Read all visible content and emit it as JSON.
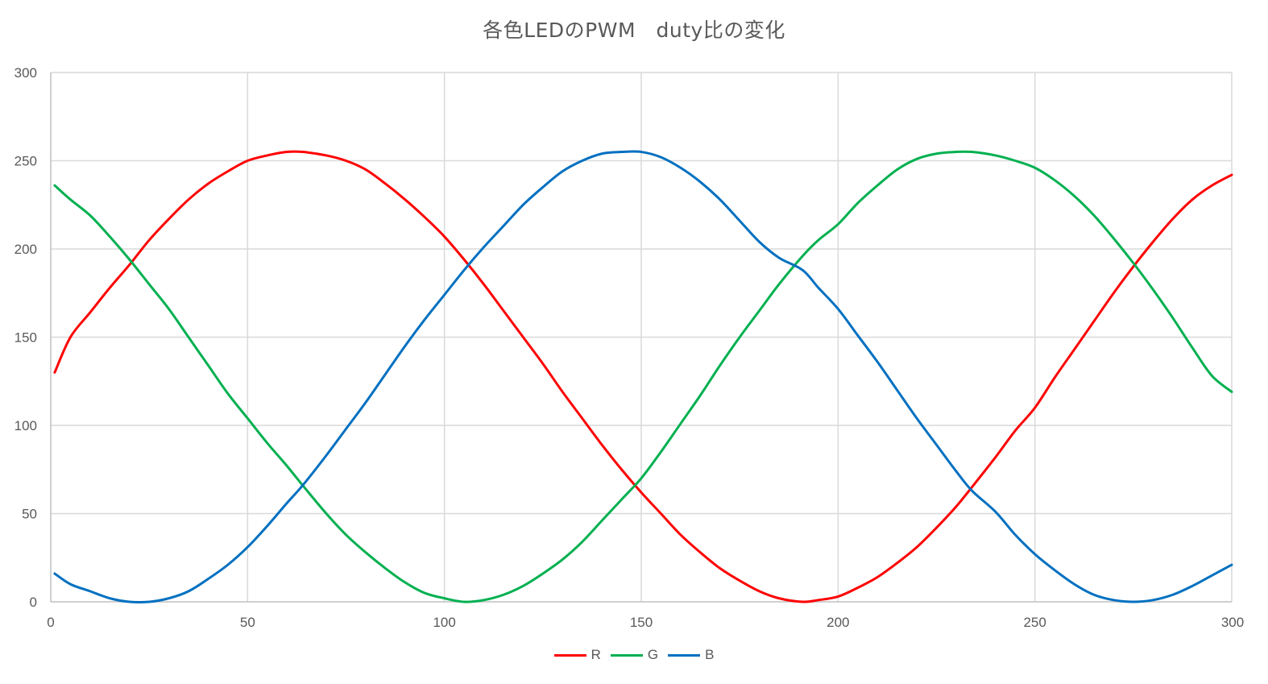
{
  "chart_data": {
    "type": "line",
    "title": "各色LEDのPWM　duty比の変化",
    "xlabel": "",
    "ylabel": "",
    "xlim": [
      0,
      300
    ],
    "ylim": [
      0,
      300
    ],
    "x_ticks": [
      0,
      50,
      100,
      150,
      200,
      250,
      300
    ],
    "y_ticks": [
      0,
      50,
      100,
      150,
      200,
      250,
      300
    ],
    "grid": true,
    "legend_position": "bottom",
    "x": [
      1,
      5,
      10,
      15,
      20,
      25,
      30,
      35,
      40,
      45,
      50,
      55,
      60,
      64,
      70,
      75,
      80,
      85,
      90,
      95,
      100,
      105,
      110,
      115,
      120,
      125,
      130,
      135,
      140,
      145,
      150,
      155,
      160,
      165,
      170,
      175,
      180,
      185,
      191,
      195,
      200,
      205,
      210,
      215,
      220,
      225,
      230,
      234,
      240,
      245,
      250,
      255,
      260,
      265,
      270,
      275,
      280,
      285,
      290,
      295,
      300
    ],
    "series": [
      {
        "name": "R",
        "color": "#ff0000",
        "values": [
          130,
          150,
          164,
          178,
          191,
          205,
          217,
          228,
          237,
          244,
          250,
          253,
          255,
          255,
          253,
          250,
          245,
          237,
          228,
          218,
          207,
          194,
          180,
          165,
          150,
          135,
          119,
          104,
          89,
          75,
          62,
          50,
          38,
          28,
          19,
          12,
          6,
          2,
          0,
          1,
          3,
          8,
          14,
          22,
          31,
          42,
          54,
          65,
          82,
          97,
          110,
          127,
          143,
          159,
          175,
          190,
          204,
          217,
          228,
          236,
          242
        ]
      },
      {
        "name": "G",
        "color": "#00b050",
        "values": [
          236,
          228,
          219,
          207,
          194,
          180,
          166,
          150,
          134,
          118,
          104,
          90,
          77,
          66,
          50,
          38,
          28,
          19,
          11,
          5,
          2,
          0,
          1,
          4,
          9,
          16,
          24,
          34,
          46,
          58,
          70,
          85,
          101,
          117,
          134,
          150,
          165,
          180,
          196,
          205,
          214,
          226,
          236,
          245,
          251,
          254,
          255,
          255,
          253,
          250,
          246,
          239,
          230,
          219,
          206,
          192,
          177,
          161,
          144,
          128,
          119
        ]
      },
      {
        "name": "B",
        "color": "#0070c0",
        "values": [
          16,
          10,
          6,
          2,
          0,
          0,
          2,
          6,
          13,
          21,
          31,
          43,
          56,
          66,
          83,
          98,
          113,
          129,
          145,
          160,
          174,
          188,
          201,
          213,
          225,
          235,
          244,
          250,
          254,
          255,
          255,
          252,
          246,
          238,
          228,
          216,
          204,
          195,
          188,
          178,
          166,
          151,
          136,
          120,
          104,
          89,
          74,
          63,
          51,
          38,
          27,
          18,
          10,
          4,
          1,
          0,
          1,
          4,
          9,
          15,
          21
        ]
      }
    ]
  }
}
